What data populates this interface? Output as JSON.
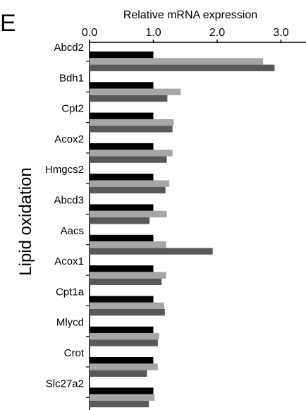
{
  "panel_label": "E",
  "chart_data": {
    "type": "bar",
    "orientation": "horizontal",
    "title": "Relative mRNA expression",
    "xlabel": "Relative mRNA expression",
    "ylabel": "Lipid oxidation",
    "xlim": [
      0,
      3.0
    ],
    "x_ticks": [
      0.0,
      1.0,
      2.0,
      3.0
    ],
    "x_tick_labels": [
      "0.0",
      "1.0",
      "2.0",
      "3.0"
    ],
    "axis_position": "top",
    "grid": false,
    "legend": "none",
    "categories": [
      "Abcd2",
      "Bdh1",
      "Cpt2",
      "Acox2",
      "Hmgcs2",
      "Abcd3",
      "Aacs",
      "Acox1",
      "Cpt1a",
      "Mlycd",
      "Crot",
      "Slc27a2"
    ],
    "series": [
      {
        "color": "#000000",
        "values": [
          1.0,
          1.0,
          1.0,
          1.0,
          1.0,
          1.0,
          1.0,
          1.0,
          1.0,
          1.0,
          1.0,
          1.0
        ]
      },
      {
        "color": "#a6a6a6",
        "values": [
          2.72,
          1.43,
          1.32,
          1.3,
          1.25,
          1.21,
          1.2,
          1.2,
          1.17,
          1.09,
          1.07,
          1.02
        ]
      },
      {
        "color": "#595959",
        "values": [
          2.9,
          1.22,
          1.3,
          1.21,
          1.19,
          0.94,
          1.93,
          1.13,
          1.18,
          1.07,
          0.9,
          0.93
        ]
      }
    ]
  }
}
